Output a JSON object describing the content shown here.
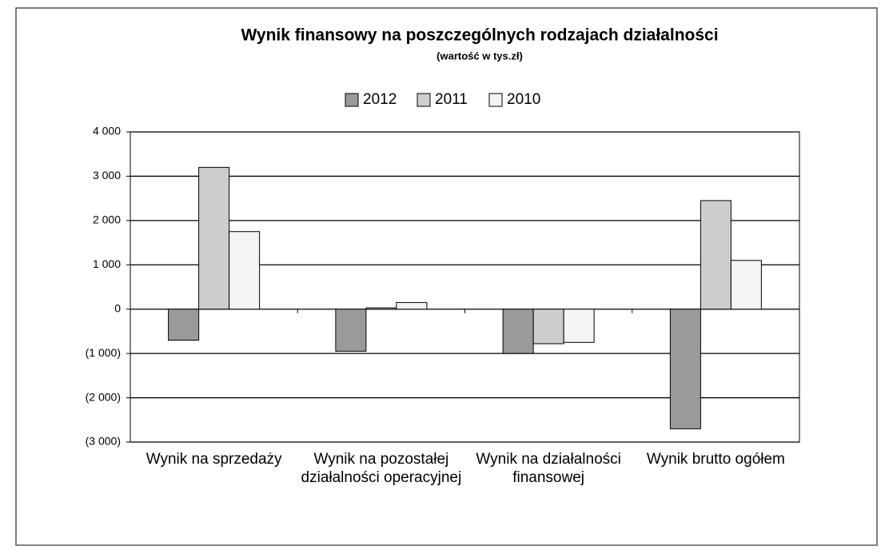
{
  "chart_data": {
    "type": "bar",
    "title": "Wynik finansowy na poszczególnych rodzajach działalności",
    "subtitle": "(wartość w tys.zł)",
    "categories": [
      "Wynik na sprzedaży",
      "Wynik na pozostałej działalności operacyjnej",
      "Wynik na działalności finansowej",
      "Wynik brutto ogółem"
    ],
    "series": [
      {
        "name": "2012",
        "color": "#9a9a9a",
        "values": [
          -700,
          -950,
          -1000,
          -2700
        ]
      },
      {
        "name": "2011",
        "color": "#cdcdcd",
        "values": [
          3200,
          30,
          -780,
          2450
        ]
      },
      {
        "name": "2010",
        "color": "#f4f4f4",
        "values": [
          1750,
          150,
          -750,
          1100
        ]
      }
    ],
    "ylim": [
      -3000,
      4000
    ],
    "yticks": [
      {
        "value": -3000,
        "label": "(3 000)"
      },
      {
        "value": -2000,
        "label": "(2 000)"
      },
      {
        "value": -1000,
        "label": "(1 000)"
      },
      0,
      {
        "value": 1000,
        "label": "1 000"
      },
      {
        "value": 2000,
        "label": "2 000"
      },
      {
        "value": 3000,
        "label": "3 000"
      },
      {
        "value": 4000,
        "label": "4 000"
      }
    ],
    "grid": true,
    "legend": "top"
  }
}
